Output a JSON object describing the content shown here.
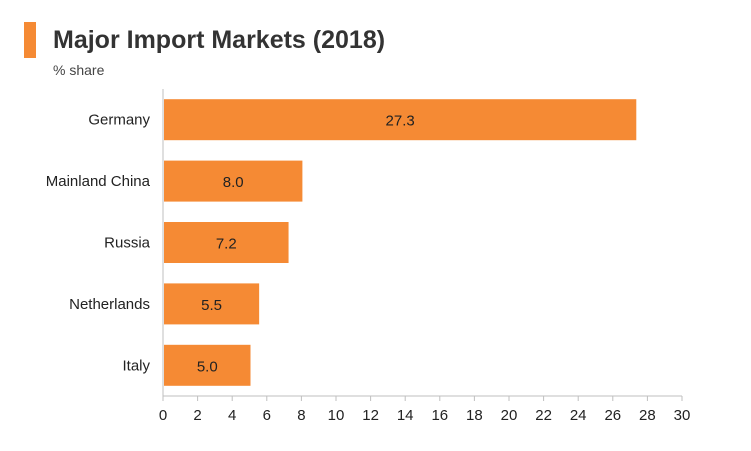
{
  "header": {
    "title": "Major Import Markets (2018)",
    "subtitle": "% share"
  },
  "colors": {
    "accent": "#f58a34",
    "bar": "#f58a34",
    "axis": "#bfbfbf",
    "text": "#222222"
  },
  "chart_data": {
    "type": "bar",
    "orientation": "horizontal",
    "title": "Major Import Markets (2018)",
    "subtitle": "% share",
    "categories": [
      "Germany",
      "Mainland China",
      "Russia",
      "Netherlands",
      "Italy"
    ],
    "values": [
      27.3,
      8.0,
      7.2,
      5.5,
      5.0
    ],
    "value_labels": [
      "27.3",
      "8.0",
      "7.2",
      "5.5",
      "5.0"
    ],
    "xlim": [
      0,
      30
    ],
    "xticks": [
      "0",
      "2",
      "4",
      "6",
      "8",
      "10",
      "12",
      "14",
      "16",
      "18",
      "20",
      "22",
      "24",
      "26",
      "28",
      "30"
    ],
    "grid": false,
    "legend": "none"
  }
}
